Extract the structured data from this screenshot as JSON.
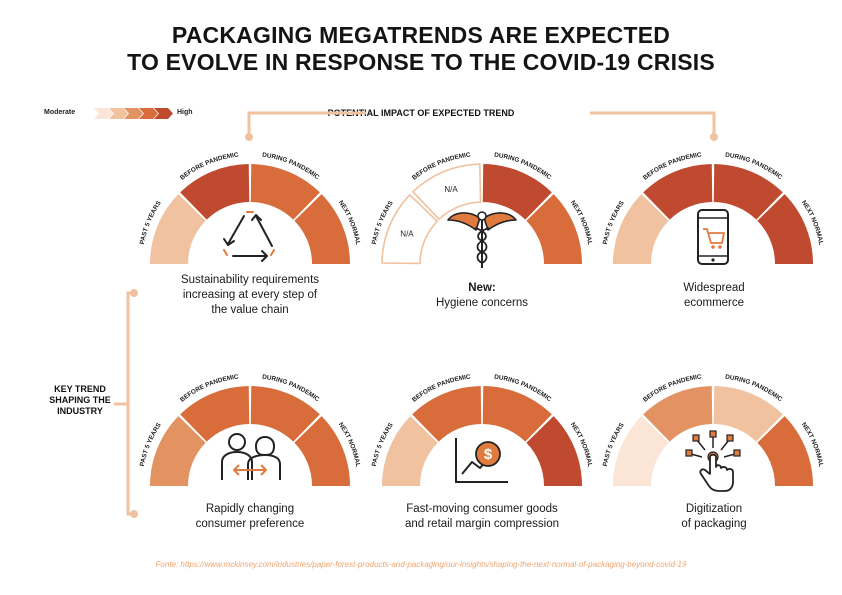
{
  "title": {
    "line1": "PACKAGING MEGATRENDS ARE EXPECTED",
    "line2": "TO EVOLVE IN RESPONSE TO THE COVID-19 CRISIS"
  },
  "legend": {
    "low": "Moderate",
    "high": "High"
  },
  "impact_label": "POTENTIAL IMPACT OF EXPECTED TREND",
  "key_trend_label": "KEY TREND SHAPING THE INDUSTRY",
  "segment_labels": {
    "past": "PAST 5 YEARS",
    "before": "BEFORE PANDEMIC",
    "during": "DURING PANDEMIC",
    "next": "NEXT NORMAL"
  },
  "na_label": "N/A",
  "colors": {
    "level1": "#fbe5d6",
    "level2": "#f0c2a0",
    "level3": "#e39262",
    "level4": "#d86d3b",
    "level5": "#bf4a2f",
    "accent": "#f0c2a0",
    "source": "#f2a46e"
  },
  "trends": [
    {
      "id": "sustainability",
      "caption_line1": "Sustainability requirements",
      "caption_line2": "increasing at every step of",
      "caption_line3": "the value chain",
      "icon": "recycle-icon",
      "levels": [
        2,
        5,
        4,
        4
      ]
    },
    {
      "id": "hygiene",
      "caption_prefix": "New:",
      "caption_line1": "Hygiene concerns",
      "icon": "caduceus-icon",
      "levels": [
        0,
        0,
        5,
        4
      ]
    },
    {
      "id": "ecommerce",
      "caption_line1": "Widespread",
      "caption_line2": "ecommerce",
      "icon": "phone-cart-icon",
      "levels": [
        2,
        5,
        5,
        5
      ]
    },
    {
      "id": "consumer",
      "caption_line1": "Rapidly changing",
      "caption_line2": "consumer preference",
      "icon": "people-exchange-icon",
      "levels": [
        3,
        4,
        4,
        4
      ]
    },
    {
      "id": "fmcg",
      "caption_line1": "Fast-moving consumer goods",
      "caption_line2": "and retail margin compression",
      "icon": "dollar-chart-icon",
      "levels": [
        2,
        4,
        4,
        5
      ]
    },
    {
      "id": "digital",
      "caption_line1": "Digitization",
      "caption_line2": "of packaging",
      "icon": "touch-icon",
      "levels": [
        1,
        3,
        2,
        4
      ]
    }
  ],
  "source": "Fonte: https://www.mckinsey.com/industries/paper-forest-products-and-packaging/our-insights/shaping-the-next-normal-of-packaging-beyond-covid-19"
}
